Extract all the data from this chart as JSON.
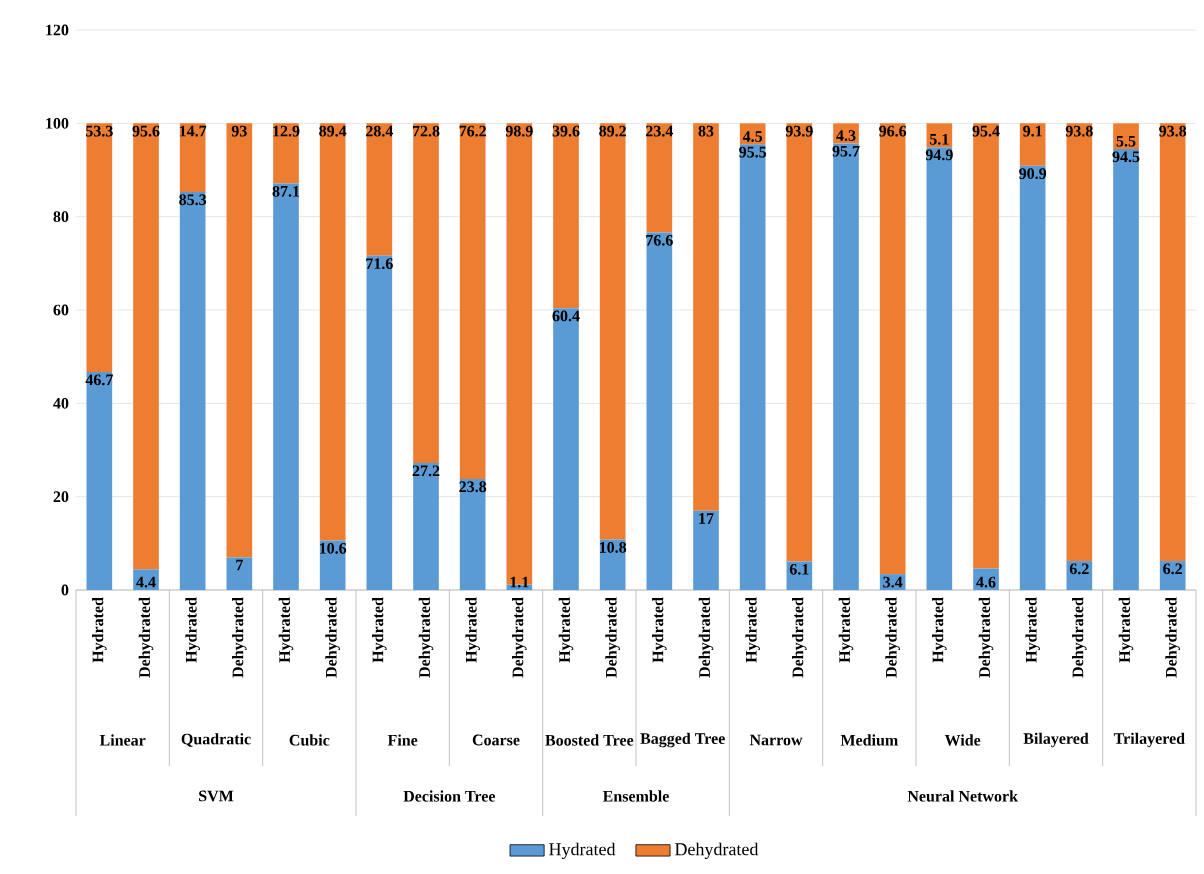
{
  "chart_data": {
    "type": "bar",
    "stacked": true,
    "categories": [
      "Hydrated",
      "Dehydrated",
      "Hydrated",
      "Dehydrated",
      "Hydrated",
      "Dehydrated",
      "Hydrated",
      "Dehydrated",
      "Hydrated",
      "Dehydrated",
      "Hydrated",
      "Dehydrated",
      "Hydrated",
      "Dehydrated",
      "Hydrated",
      "Dehydrated",
      "Hydrated",
      "Dehydrated",
      "Hydrated",
      "Dehydrated",
      "Hydrated",
      "Dehydrated",
      "Hydrated",
      "Dehydrated"
    ],
    "series": [
      {
        "name": "Hydrated",
        "color": "#5b9bd5",
        "values": [
          46.7,
          4.4,
          85.3,
          7,
          87.1,
          10.6,
          71.6,
          27.2,
          23.8,
          1.1,
          60.4,
          10.8,
          76.6,
          17,
          95.5,
          6.1,
          95.7,
          3.4,
          94.9,
          4.6,
          90.9,
          6.2,
          94.5,
          6.2
        ]
      },
      {
        "name": "Dehydrated",
        "color": "#ed7d31",
        "values": [
          53.3,
          95.6,
          14.7,
          93,
          12.9,
          89.4,
          28.4,
          72.8,
          76.2,
          98.9,
          39.6,
          89.2,
          23.4,
          83,
          4.5,
          93.9,
          4.3,
          96.6,
          5.1,
          95.4,
          9.1,
          93.8,
          5.5,
          93.8
        ]
      }
    ],
    "annotations": [
      "Linear",
      "Quadratic",
      "Cubic",
      "Fine",
      "Coarse",
      "Boosted Tree",
      "Bagged Tree",
      "Narrow",
      "Medium",
      "Wide",
      "Bilayered",
      "Trilayered",
      "SVM",
      "Decision Tree",
      "Ensemble",
      "Neural Network"
    ],
    "ylim": [
      0,
      120
    ],
    "yticks": [
      0,
      20,
      40,
      60,
      80,
      100,
      120
    ],
    "grid": "y",
    "legend": "bottom",
    "data_labels": true
  }
}
